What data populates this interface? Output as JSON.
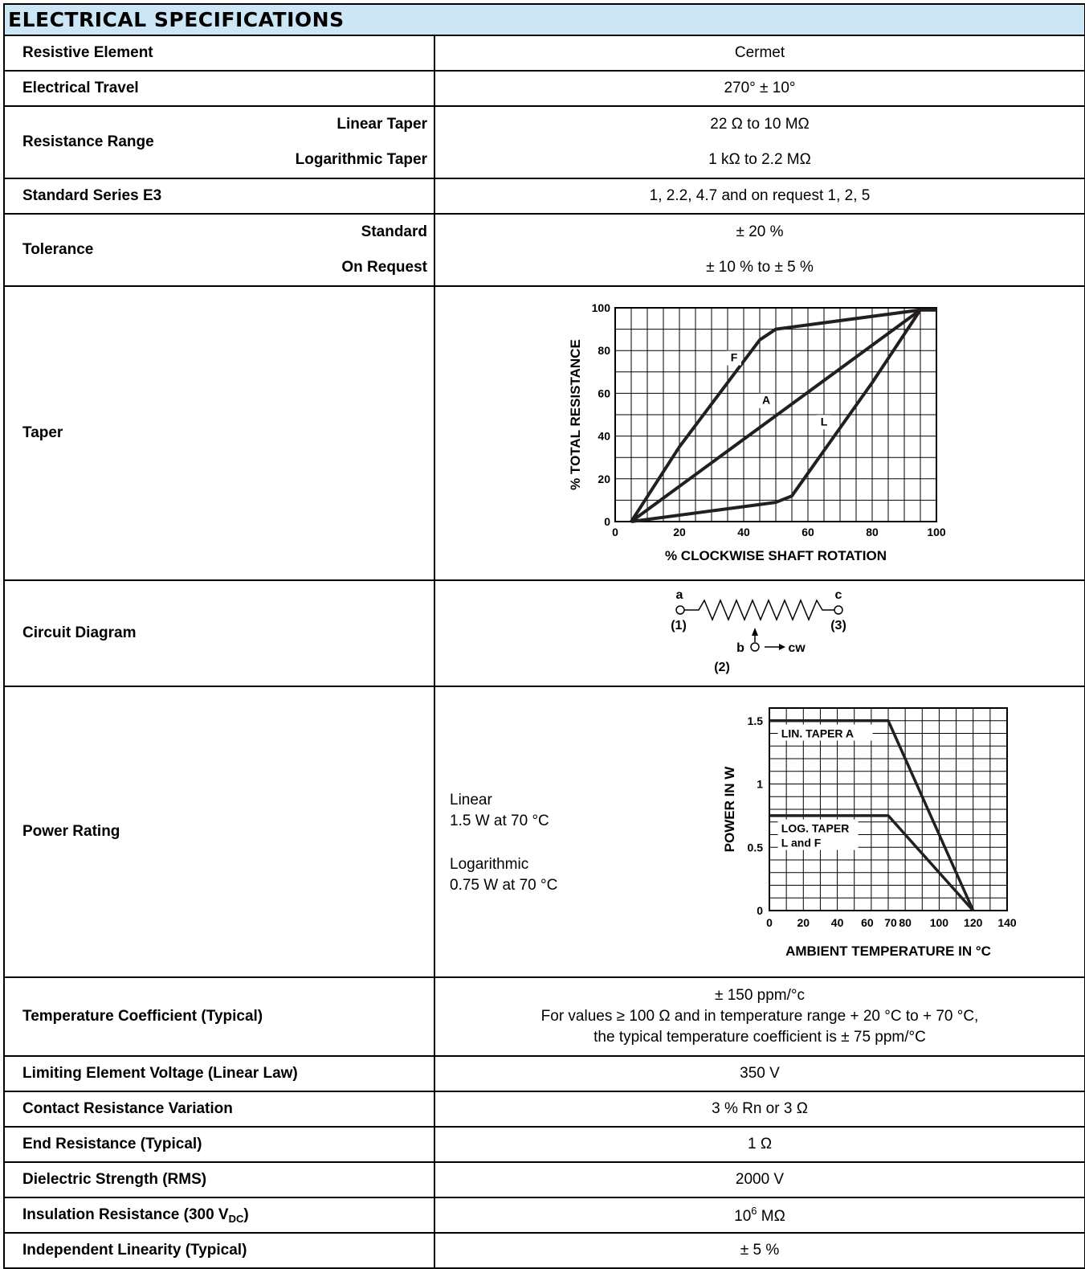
{
  "title": "ELECTRICAL SPECIFICATIONS",
  "resistive_element": {
    "label": "Resistive Element",
    "value": "Cermet"
  },
  "electrical_travel": {
    "label": "Electrical Travel",
    "value": "270° ± 10°"
  },
  "resistance_range": {
    "label": "Resistance Range",
    "linear_label": "Linear Taper",
    "linear_value": "22 Ω to 10 MΩ",
    "log_label": "Logarithmic Taper",
    "log_value": "1 kΩ to 2.2 MΩ"
  },
  "standard_series": {
    "label": "Standard Series E3",
    "value": "1, 2.2, 4.7 and on request 1, 2, 5"
  },
  "tolerance": {
    "label": "Tolerance",
    "standard_label": "Standard",
    "standard_value": "± 20 %",
    "request_label": "On Request",
    "request_value": "± 10 % to ± 5 %"
  },
  "taper": {
    "label": "Taper"
  },
  "circuit": {
    "label": "Circuit Diagram",
    "a": "a",
    "n1": "(1)",
    "c": "c",
    "n3": "(3)",
    "b": "b",
    "n2": "(2)",
    "cw": "cw"
  },
  "power_rating": {
    "label": "Power Rating",
    "linear_title": "Linear",
    "linear_value": "1.5 W at 70 °C",
    "log_title": "Logarithmic",
    "log_value": "0.75 W at 70 °C"
  },
  "temp_coeff": {
    "label": "Temperature Coefficient (Typical)",
    "line1": "± 150 ppm/°c",
    "line2": "For values ≥ 100 Ω and in temperature range + 20 °C to + 70 °C,",
    "line3": "the typical temperature coefficient is ± 75 ppm/°C"
  },
  "limiting_voltage": {
    "label": "Limiting Element Voltage (Linear Law)",
    "value": "350 V"
  },
  "contact_resistance": {
    "label": "Contact Resistance Variation",
    "value": "3 % Rn or 3 Ω"
  },
  "end_resistance": {
    "label": "End Resistance (Typical)",
    "value": "1 Ω"
  },
  "dielectric": {
    "label": "Dielectric Strength (RMS)",
    "value": "2000 V"
  },
  "insulation": {
    "label_pre": "Insulation Resistance (300 V",
    "label_sub": "DC",
    "label_post": ")",
    "value_base": "10",
    "value_exp": "6",
    "value_unit": " MΩ"
  },
  "linearity": {
    "label": "Independent Linearity (Typical)",
    "value": "± 5 %"
  },
  "chart_data": [
    {
      "type": "line",
      "xlabel": "% CLOCKWISE SHAFT ROTATION",
      "ylabel": "% TOTAL RESISTANCE",
      "xlim": [
        0,
        100
      ],
      "ylim": [
        0,
        100
      ],
      "xticks": [
        "0",
        "20",
        "40",
        "60",
        "80",
        "100"
      ],
      "yticks": [
        "0",
        "20",
        "40",
        "60",
        "80",
        "100"
      ],
      "grid": true,
      "series": [
        {
          "name": "F",
          "x": [
            5,
            20,
            45,
            50,
            55,
            95,
            100
          ],
          "y": [
            0,
            35,
            85,
            90,
            91,
            99,
            99
          ]
        },
        {
          "name": "A",
          "x": [
            5,
            95,
            100
          ],
          "y": [
            0,
            99,
            99
          ]
        },
        {
          "name": "L",
          "x": [
            5,
            45,
            50,
            55,
            80,
            95,
            100
          ],
          "y": [
            0,
            8,
            9,
            12,
            65,
            99,
            99
          ]
        }
      ]
    },
    {
      "type": "line",
      "xlabel": "AMBIENT TEMPERATURE IN °C",
      "ylabel": "POWER IN W",
      "xlim": [
        0,
        140
      ],
      "ylim": [
        0,
        1.6
      ],
      "xticks": [
        "0",
        "20",
        "40",
        "60",
        "70",
        "80",
        "100",
        "120",
        "140"
      ],
      "yticks": [
        "0",
        "0.5",
        "1",
        "1.5"
      ],
      "grid": true,
      "series": [
        {
          "name": "LIN. TAPER A",
          "x": [
            0,
            70,
            120
          ],
          "y": [
            1.5,
            1.5,
            0
          ]
        },
        {
          "name": "LOG. TAPER L and F",
          "x": [
            0,
            70,
            120
          ],
          "y": [
            0.75,
            0.75,
            0
          ]
        }
      ]
    }
  ]
}
